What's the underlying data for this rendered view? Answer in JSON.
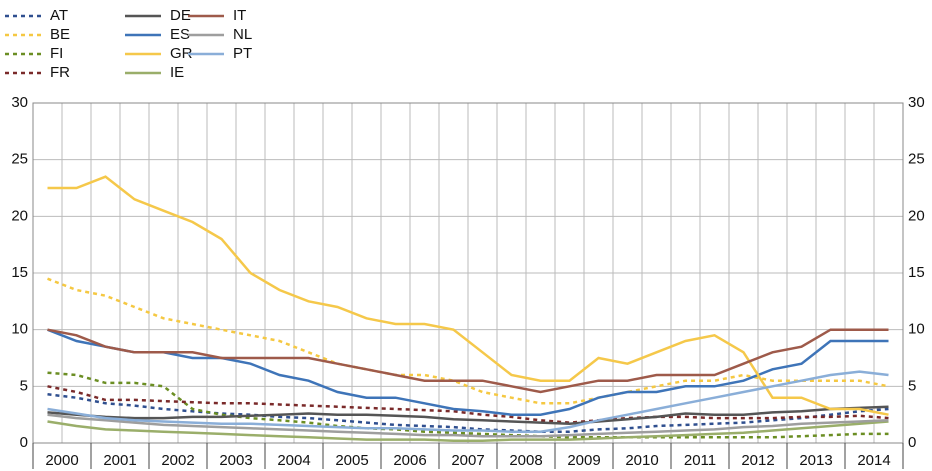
{
  "chart_data": {
    "type": "line",
    "categories": [
      "2000",
      null,
      "2001",
      null,
      "2002",
      null,
      "2003",
      null,
      "2004",
      null,
      "2005",
      null,
      "2006",
      null,
      "2007",
      null,
      "2008",
      null,
      "2009",
      null,
      "2010",
      null,
      "2011",
      null,
      "2012",
      null,
      "2013",
      null,
      "2014",
      null
    ],
    "ylim": [
      0,
      30
    ],
    "yticks": [
      0,
      5,
      10,
      15,
      20,
      25,
      30
    ],
    "y2lim": [
      0,
      30
    ],
    "y2ticks": [
      0,
      5,
      10,
      15,
      20,
      25,
      30
    ],
    "grid": true,
    "series": [
      {
        "name": "AT",
        "color": "#2f4f8f",
        "dashed": true,
        "values": [
          4.3,
          4,
          3.5,
          3.3,
          3,
          2.8,
          2.6,
          2.5,
          2.3,
          2.2,
          2,
          1.8,
          1.6,
          1.5,
          1.4,
          1.2,
          1.1,
          1,
          1,
          1.2,
          1.3,
          1.5,
          1.6,
          1.7,
          1.8,
          2,
          2.2,
          2.5,
          2.8,
          3
        ]
      },
      {
        "name": "BE",
        "color": "#f5c842",
        "dashed": true,
        "values": [
          14.5,
          13.5,
          13,
          12,
          11,
          10.5,
          10,
          9.5,
          9,
          8,
          7,
          6.5,
          6,
          6,
          5.5,
          4.5,
          4,
          3.5,
          3.5,
          4,
          4.5,
          5,
          5.5,
          5.5,
          6,
          5.5,
          5.5,
          5.5,
          5.5,
          5
        ]
      },
      {
        "name": "FI",
        "color": "#6b8e23",
        "dashed": true,
        "values": [
          6.2,
          6,
          5.3,
          5.3,
          5,
          3,
          2.5,
          2.2,
          2,
          1.8,
          1.5,
          1.3,
          1.2,
          1,
          0.9,
          0.8,
          0.7,
          0.6,
          0.5,
          0.5,
          0.5,
          0.5,
          0.5,
          0.5,
          0.5,
          0.5,
          0.6,
          0.7,
          0.8,
          0.8
        ]
      },
      {
        "name": "FR",
        "color": "#7a2a2a",
        "dashed": true,
        "values": [
          5,
          4.5,
          3.8,
          3.8,
          3.7,
          3.6,
          3.5,
          3.5,
          3.4,
          3.3,
          3.2,
          3.1,
          3,
          2.9,
          2.8,
          2.5,
          2.3,
          2,
          1.8,
          2,
          2.2,
          2.3,
          2.3,
          2.2,
          2.2,
          2.2,
          2.3,
          2.3,
          2.4,
          2.2
        ]
      },
      {
        "name": "DE",
        "color": "#555555",
        "dashed": false,
        "values": [
          2.7,
          2.5,
          2.3,
          2.2,
          2.2,
          2.3,
          2.3,
          2.4,
          2.5,
          2.6,
          2.5,
          2.5,
          2.4,
          2.3,
          2.1,
          2,
          1.9,
          1.8,
          1.7,
          1.9,
          2.1,
          2.3,
          2.6,
          2.5,
          2.5,
          2.7,
          2.8,
          3,
          3.1,
          3.2
        ]
      },
      {
        "name": "ES",
        "color": "#3e74b8",
        "dashed": false,
        "values": [
          10,
          9,
          8.5,
          8,
          8,
          7.5,
          7.5,
          7,
          6,
          5.5,
          4.5,
          4,
          4,
          3.5,
          3,
          2.8,
          2.5,
          2.5,
          3,
          4,
          4.5,
          4.5,
          5,
          5,
          5.5,
          6.5,
          7,
          9,
          9,
          9
        ]
      },
      {
        "name": "GR",
        "color": "#f5c84a",
        "dashed": false,
        "values": [
          22.5,
          22.5,
          23.5,
          21.5,
          20.5,
          19.5,
          18,
          15,
          13.5,
          12.5,
          12,
          11,
          10.5,
          10.5,
          10,
          8,
          6,
          5.5,
          5.5,
          7.5,
          7,
          8,
          9,
          9.5,
          8,
          4,
          4,
          3,
          3,
          2.5
        ]
      },
      {
        "name": "IE",
        "color": "#9aae6a",
        "dashed": false,
        "values": [
          1.9,
          1.5,
          1.2,
          1.1,
          1,
          0.9,
          0.8,
          0.7,
          0.6,
          0.5,
          0.4,
          0.3,
          0.3,
          0.3,
          0.2,
          0.2,
          0.3,
          0.3,
          0.3,
          0.4,
          0.5,
          0.6,
          0.7,
          0.8,
          0.9,
          1.1,
          1.3,
          1.5,
          1.7,
          1.9
        ]
      },
      {
        "name": "IT",
        "color": "#9e5a4a",
        "dashed": false,
        "values": [
          10,
          9.5,
          8.5,
          8,
          8,
          8,
          7.5,
          7.5,
          7.5,
          7.5,
          7,
          6.5,
          6,
          5.5,
          5.5,
          5.5,
          5,
          4.5,
          5,
          5.5,
          5.5,
          6,
          6,
          6,
          7,
          8,
          8.5,
          10,
          10,
          10
        ]
      },
      {
        "name": "NL",
        "color": "#9e9e9e",
        "dashed": false,
        "values": [
          2.5,
          2.2,
          2,
          1.8,
          1.6,
          1.5,
          1.4,
          1.3,
          1.2,
          1.1,
          1,
          0.9,
          0.8,
          0.7,
          0.7,
          0.6,
          0.6,
          0.6,
          0.7,
          0.8,
          0.9,
          1,
          1.1,
          1.2,
          1.4,
          1.5,
          1.7,
          1.8,
          1.9,
          2
        ]
      },
      {
        "name": "PT",
        "color": "#8aaed8",
        "dashed": false,
        "values": [
          3,
          2.6,
          2.2,
          2,
          1.9,
          1.8,
          1.7,
          1.7,
          1.6,
          1.5,
          1.4,
          1.3,
          1.3,
          1.2,
          1.1,
          1.1,
          1,
          1,
          1.4,
          2,
          2.5,
          3,
          3.5,
          4,
          4.5,
          5,
          5.5,
          6,
          6.3,
          6
        ]
      }
    ]
  }
}
